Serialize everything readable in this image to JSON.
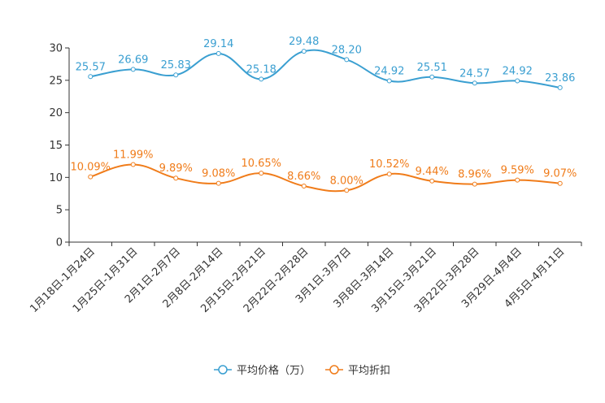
{
  "chart_data": {
    "type": "line",
    "title": "",
    "xlabel": "",
    "ylabel": "",
    "ylim": [
      0,
      30
    ],
    "yticks": [
      0,
      5,
      10,
      15,
      20,
      25,
      30
    ],
    "grid": false,
    "legend_position": "bottom-center",
    "categories": [
      "1月18日-1月24日",
      "1月25日-1月31日",
      "2月1日-2月7日",
      "2月8日-2月14日",
      "2月15日-2月21日",
      "2月22日-2月28日",
      "3月1日-3月7日",
      "3月8日-3月14日",
      "3月15日-3月21日",
      "3月22日-3月28日",
      "3月29日-4月4日",
      "4月5日-4月11日"
    ],
    "series": [
      {
        "name": "平均价格（万）",
        "color": "#3a9fd1",
        "values": [
          25.57,
          26.69,
          25.83,
          29.14,
          25.18,
          29.48,
          28.2,
          24.92,
          25.51,
          24.57,
          24.92,
          23.86
        ],
        "labels": [
          "25.57",
          "26.69",
          "25.83",
          "29.14",
          "25.18",
          "29.48",
          "28.20",
          "24.92",
          "25.51",
          "24.57",
          "24.92",
          "23.86"
        ]
      },
      {
        "name": "平均折扣",
        "color": "#f07c1a",
        "values": [
          10.09,
          11.99,
          9.89,
          9.08,
          10.65,
          8.66,
          8.0,
          10.52,
          9.44,
          8.96,
          9.59,
          9.07
        ],
        "labels": [
          "10.09%",
          "11.99%",
          "9.89%",
          "9.08%",
          "10.65%",
          "8.66%",
          "8.00%",
          "10.52%",
          "9.44%",
          "8.96%",
          "9.59%",
          "9.07%"
        ]
      }
    ]
  }
}
